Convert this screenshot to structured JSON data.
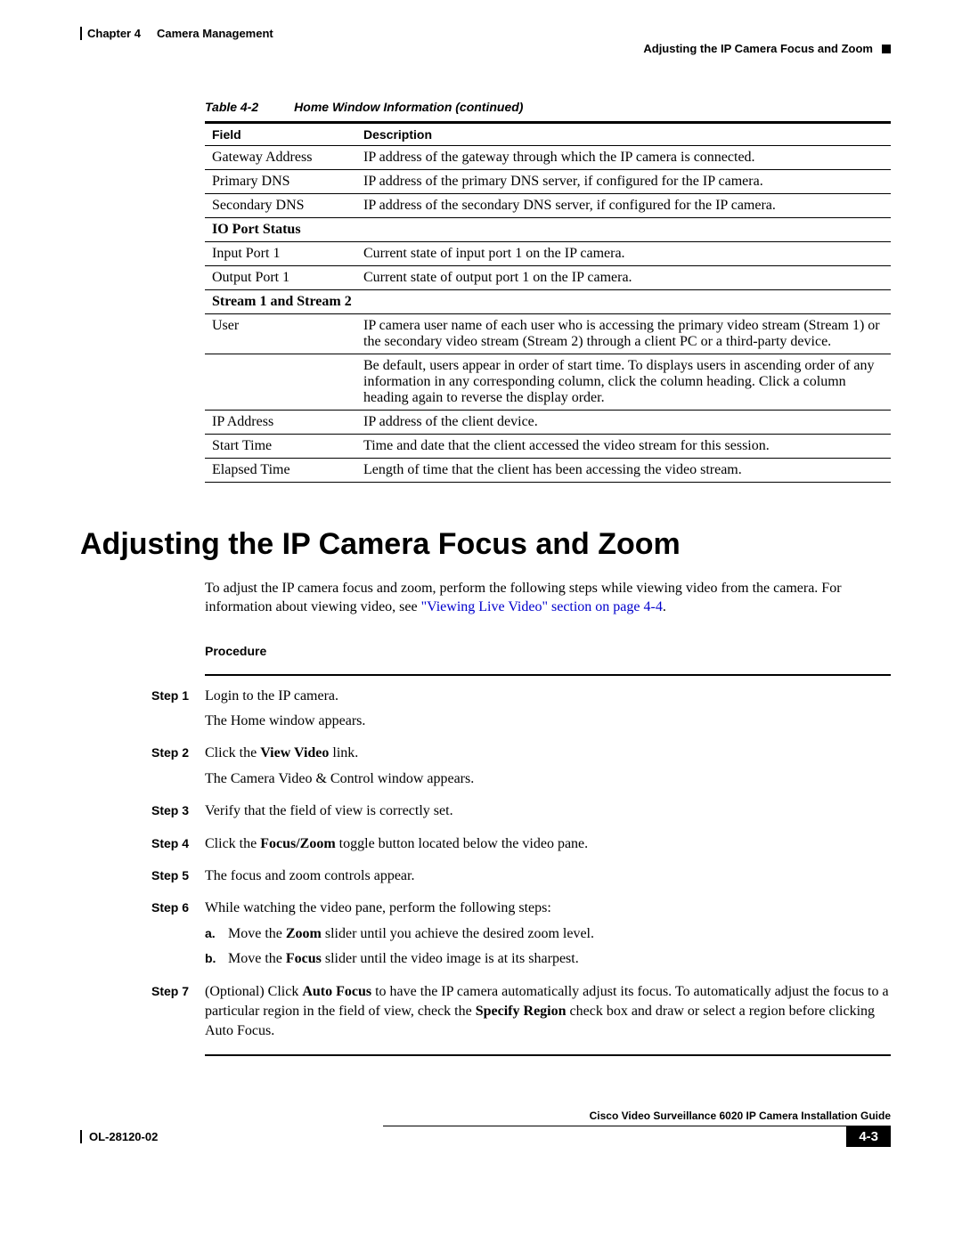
{
  "header": {
    "chapter_label": "Chapter 4",
    "chapter_title": "Camera Management",
    "section_title": "Adjusting the IP Camera Focus and Zoom"
  },
  "table": {
    "caption_ref": "Table 4-2",
    "caption_title": "Home Window Information (continued)",
    "columns": [
      "Field",
      "Description"
    ],
    "rows": [
      {
        "field": "Gateway Address",
        "desc": "IP address of the gateway through which the IP camera is connected."
      },
      {
        "field": "Primary DNS",
        "desc": "IP address of the primary DNS server, if configured for the IP camera."
      },
      {
        "field": "Secondary DNS",
        "desc": "IP address of the secondary DNS server, if configured for the IP camera."
      }
    ],
    "section1": "IO Port Status",
    "rows2": [
      {
        "field": "Input Port 1",
        "desc": "Current state of input port 1 on the IP camera."
      },
      {
        "field": "Output Port 1",
        "desc": "Current state of output port 1 on the IP camera."
      }
    ],
    "section2": "Stream 1 and Stream 2",
    "user_field": "User",
    "user_desc1": "IP camera user name of each user who is accessing the primary video stream (Stream 1) or the secondary video stream (Stream 2) through a client PC or a third-party device.",
    "user_desc2": "Be default, users appear in order of start time. To displays users in ascending order of any information in any corresponding column, click the column heading. Click a column heading again to reverse the display order.",
    "rows3": [
      {
        "field": "IP Address",
        "desc": "IP address of the client device."
      },
      {
        "field": "Start Time",
        "desc": "Time and date that the client accessed the video stream for this session."
      },
      {
        "field": "Elapsed Time",
        "desc": "Length of time that the client has been accessing the video stream."
      }
    ]
  },
  "heading": "Adjusting the IP Camera Focus and Zoom",
  "intro": {
    "before_link": "To adjust the IP camera focus and zoom, perform the following steps while viewing video from the camera. For information about viewing video, see ",
    "link": "\"Viewing Live Video\" section on page 4-4",
    "after_link": "."
  },
  "procedure": {
    "heading": "Procedure",
    "steps": [
      {
        "label": "Step 1",
        "lines": [
          "Login to the IP camera.",
          "The Home window appears."
        ]
      },
      {
        "label": "Step 2",
        "pre": "Click the ",
        "bold": "View Video",
        "post": " link.",
        "extra": "The Camera Video & Control window appears."
      },
      {
        "label": "Step 3",
        "text": "Verify that the field of view is correctly set."
      },
      {
        "label": "Step 4",
        "pre": "Click the ",
        "bold": "Focus/Zoom",
        "post": " toggle button located below the video pane."
      },
      {
        "label": "Step 5",
        "text": "The focus and zoom controls appear."
      },
      {
        "label": "Step 6",
        "text": "While watching the video pane, perform the following steps:",
        "subs": [
          {
            "label": "a.",
            "pre": "Move the ",
            "bold": "Zoom",
            "post": " slider until you achieve the desired zoom level."
          },
          {
            "label": "b.",
            "pre": "Move the ",
            "bold": "Focus",
            "post": " slider until the video image is at its sharpest."
          }
        ]
      },
      {
        "label": "Step 7",
        "pre": "(Optional) Click ",
        "bold": "Auto Focus",
        "mid": " to have the IP camera automatically adjust its focus. To automatically adjust the focus to a particular region in the field of view, check the ",
        "bold2": "Specify Region",
        "post": " check box and draw or select a region before clicking Auto Focus."
      }
    ]
  },
  "footer": {
    "guide_title": "Cisco Video Surveillance 6020 IP Camera Installation Guide",
    "doc_id": "OL-28120-02",
    "page_num": "4-3"
  }
}
